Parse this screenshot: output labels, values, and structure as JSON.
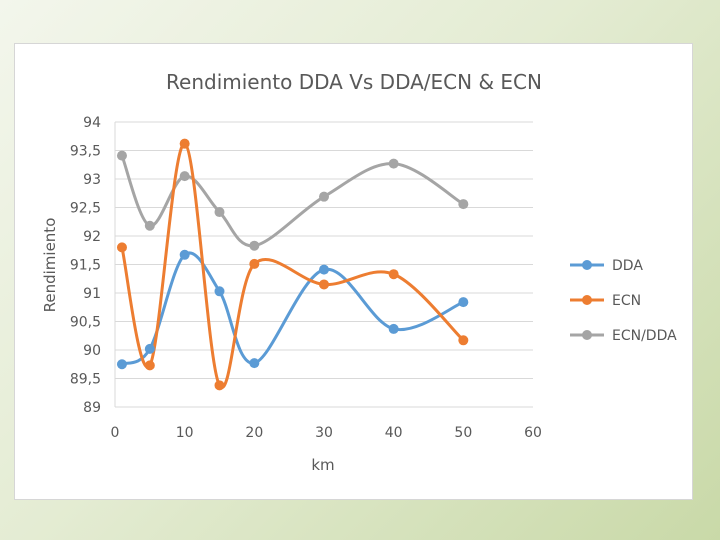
{
  "chart_data": {
    "type": "line",
    "title": "Rendimiento DDA Vs DDA/ECN & ECN",
    "xlabel": "km",
    "ylabel": "Rendimiento",
    "xlim": [
      0,
      60
    ],
    "ylim": [
      89,
      94
    ],
    "x_ticks": [
      "0",
      "10",
      "20",
      "30",
      "40",
      "50",
      "60"
    ],
    "y_ticks": [
      "89",
      "89,5",
      "90",
      "90,5",
      "91",
      "91,5",
      "92",
      "92,5",
      "93",
      "93,5",
      "94"
    ],
    "grid": true,
    "smooth": true,
    "legend_position": "right",
    "x": [
      1,
      5,
      10,
      15,
      20,
      30,
      40,
      50
    ],
    "series": [
      {
        "name": "DDA",
        "color": "#5b9bd5",
        "values": [
          89.75,
          90.02,
          91.67,
          91.03,
          89.77,
          91.41,
          90.37,
          90.84
        ]
      },
      {
        "name": "ECN",
        "color": "#ed7d31",
        "values": [
          91.8,
          89.73,
          93.62,
          89.38,
          91.51,
          91.15,
          91.33,
          90.17
        ]
      },
      {
        "name": "ECN/DDA",
        "color": "#a5a5a5",
        "values": [
          93.41,
          92.18,
          93.05,
          92.42,
          91.83,
          92.69,
          93.27,
          92.56
        ]
      }
    ]
  }
}
